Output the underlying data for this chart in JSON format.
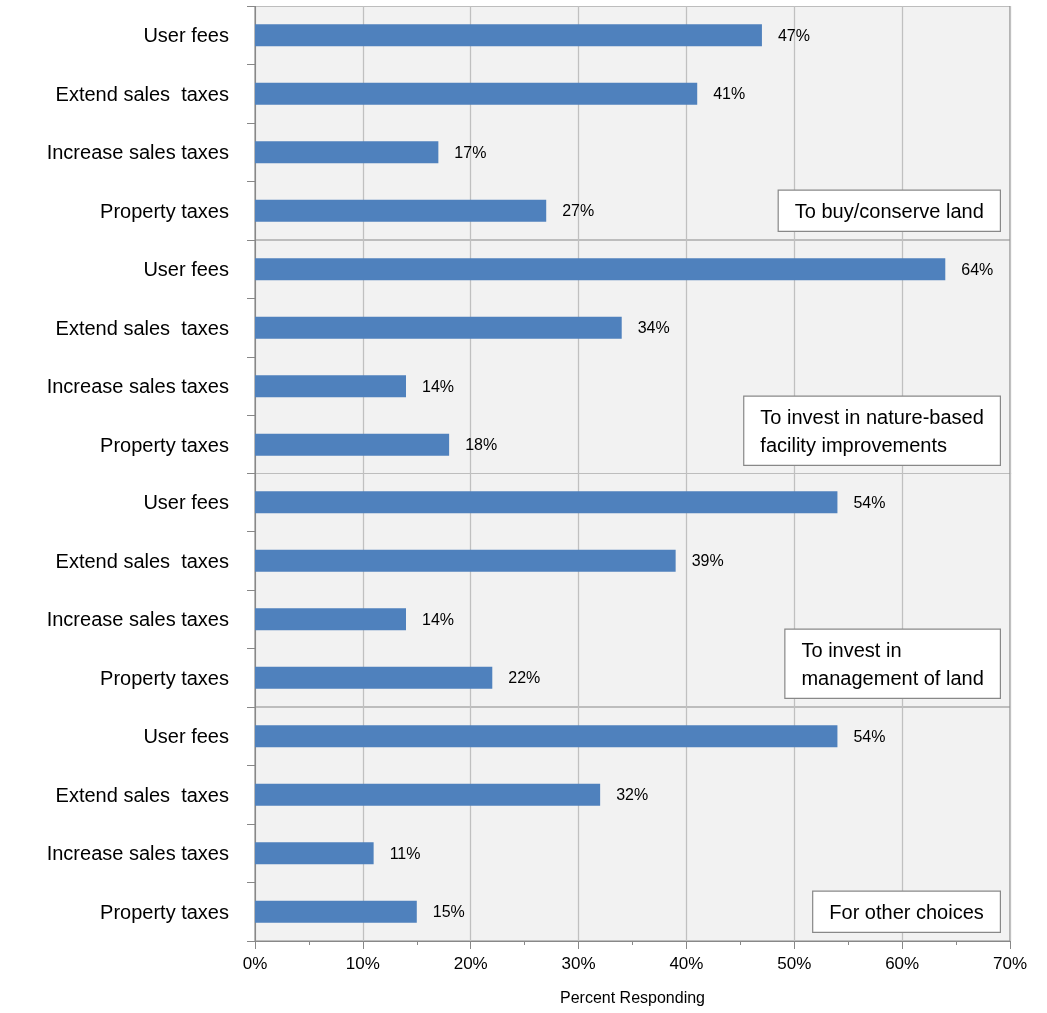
{
  "chart_data": [
    {
      "type": "bar",
      "orientation": "horizontal",
      "categories": [
        "User fees",
        "Extend sales  taxes",
        "Increase sales taxes",
        "Property taxes"
      ],
      "values": [
        47,
        41,
        17,
        27
      ],
      "value_labels": [
        "47%",
        "41%",
        "17%",
        "27%"
      ],
      "color": "#4f81bd",
      "xlim": [
        0,
        70
      ],
      "xticks": [
        0,
        10,
        20,
        30,
        40,
        50,
        60,
        70
      ],
      "grid": "x",
      "tick_labels": "y",
      "annotations": [
        "To buy/conserve land"
      ]
    },
    {
      "type": "bar",
      "orientation": "horizontal",
      "categories": [
        "User fees",
        "Extend sales  taxes",
        "Increase sales taxes",
        "Property taxes"
      ],
      "values": [
        64,
        34,
        14,
        18
      ],
      "value_labels": [
        "64%",
        "34%",
        "14%",
        "18%"
      ],
      "color": "#4f81bd",
      "xlim": [
        0,
        70
      ],
      "xticks": [
        0,
        10,
        20,
        30,
        40,
        50,
        60,
        70
      ],
      "grid": "x",
      "tick_labels": "y",
      "annotations": [
        "To invest in nature-based\nfacility improvements"
      ]
    },
    {
      "type": "bar",
      "orientation": "horizontal",
      "categories": [
        "User fees",
        "Extend sales  taxes",
        "Increase sales taxes",
        "Property taxes"
      ],
      "values": [
        54,
        39,
        14,
        22
      ],
      "value_labels": [
        "54%",
        "39%",
        "14%",
        "22%"
      ],
      "color": "#4f81bd",
      "xlim": [
        0,
        70
      ],
      "xticks": [
        0,
        10,
        20,
        30,
        40,
        50,
        60,
        70
      ],
      "grid": "x",
      "tick_labels": "y",
      "annotations": [
        "To invest in\nmanagement of land"
      ]
    },
    {
      "type": "bar",
      "orientation": "horizontal",
      "categories": [
        "User fees",
        "Extend sales  taxes",
        "Increase sales taxes",
        "Property taxes"
      ],
      "values": [
        54,
        32,
        11,
        15
      ],
      "value_labels": [
        "54%",
        "32%",
        "11%",
        "15%"
      ],
      "color": "#4f81bd",
      "xlim": [
        0,
        70
      ],
      "xticks": [
        {
          "value": 0,
          "label": "0%"
        },
        {
          "value": 10,
          "label": "10%"
        },
        {
          "value": 20,
          "label": "20%"
        },
        {
          "value": 30,
          "label": "30%"
        },
        {
          "value": 40,
          "label": "40%"
        },
        {
          "value": 50,
          "label": "50%"
        },
        {
          "value": 60,
          "label": "60%"
        },
        {
          "value": 70,
          "label": "70%"
        }
      ],
      "grid": "x",
      "xlabel": "Percent Responding",
      "annotations": [
        "For other choices"
      ]
    }
  ]
}
